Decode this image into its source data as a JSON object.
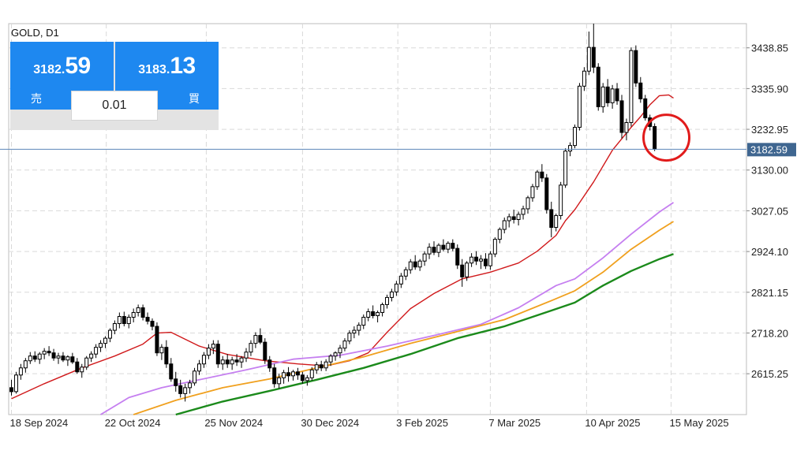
{
  "symbol_label": "GOLD, D1",
  "trade_panel": {
    "sell": {
      "price_small": "3182.",
      "price_big": "59",
      "label": "売"
    },
    "buy": {
      "price_small": "3183.",
      "price_big": "13",
      "label": "買"
    },
    "lot": "0.01",
    "color": "#1e88f0"
  },
  "chart_data": {
    "type": "candlestick",
    "title": "GOLD, D1",
    "ylim": [
      2512,
      3500
    ],
    "y_ticks": [
      "3438.85",
      "3335.90",
      "3232.95",
      "3130.00",
      "3027.05",
      "2924.10",
      "2821.15",
      "2718.20",
      "2615.25"
    ],
    "x_ticks": [
      "18 Sep 2024",
      "22 Oct 2024",
      "25 Nov 2024",
      "30 Dec 2024",
      "3 Feb 2025",
      "7 Mar 2025",
      "10 Apr 2025",
      "15 May 2025"
    ],
    "current_price": 3182.59,
    "current_price_label": "3182.59",
    "grid": true,
    "candles": [
      [
        2580,
        2600,
        2560,
        2570
      ],
      [
        2570,
        2620,
        2565,
        2612
      ],
      [
        2612,
        2640,
        2600,
        2630
      ],
      [
        2630,
        2655,
        2618,
        2648
      ],
      [
        2648,
        2670,
        2640,
        2660
      ],
      [
        2660,
        2672,
        2645,
        2652
      ],
      [
        2652,
        2670,
        2640,
        2665
      ],
      [
        2665,
        2680,
        2652,
        2672
      ],
      [
        2672,
        2685,
        2660,
        2668
      ],
      [
        2668,
        2678,
        2648,
        2655
      ],
      [
        2655,
        2668,
        2640,
        2660
      ],
      [
        2660,
        2670,
        2645,
        2650
      ],
      [
        2650,
        2662,
        2635,
        2658
      ],
      [
        2658,
        2668,
        2640,
        2645
      ],
      [
        2645,
        2655,
        2615,
        2620
      ],
      [
        2620,
        2640,
        2605,
        2632
      ],
      [
        2632,
        2660,
        2625,
        2655
      ],
      [
        2655,
        2672,
        2645,
        2665
      ],
      [
        2665,
        2690,
        2655,
        2682
      ],
      [
        2682,
        2700,
        2670,
        2692
      ],
      [
        2692,
        2710,
        2680,
        2705
      ],
      [
        2705,
        2730,
        2695,
        2725
      ],
      [
        2725,
        2750,
        2715,
        2742
      ],
      [
        2742,
        2770,
        2730,
        2760
      ],
      [
        2760,
        2772,
        2735,
        2742
      ],
      [
        2742,
        2765,
        2730,
        2758
      ],
      [
        2758,
        2780,
        2745,
        2770
      ],
      [
        2770,
        2790,
        2760,
        2782
      ],
      [
        2782,
        2790,
        2750,
        2758
      ],
      [
        2758,
        2770,
        2740,
        2748
      ],
      [
        2748,
        2755,
        2725,
        2735
      ],
      [
        2735,
        2745,
        2660,
        2668
      ],
      [
        2668,
        2690,
        2650,
        2682
      ],
      [
        2682,
        2700,
        2630,
        2640
      ],
      [
        2640,
        2655,
        2595,
        2602
      ],
      [
        2602,
        2620,
        2570,
        2585
      ],
      [
        2585,
        2600,
        2555,
        2565
      ],
      [
        2565,
        2590,
        2545,
        2580
      ],
      [
        2580,
        2600,
        2565,
        2592
      ],
      [
        2592,
        2630,
        2585,
        2622
      ],
      [
        2622,
        2650,
        2612,
        2640
      ],
      [
        2640,
        2670,
        2630,
        2662
      ],
      [
        2662,
        2690,
        2652,
        2680
      ],
      [
        2680,
        2700,
        2665,
        2690
      ],
      [
        2690,
        2700,
        2630,
        2640
      ],
      [
        2640,
        2660,
        2625,
        2650
      ],
      [
        2650,
        2665,
        2630,
        2640
      ],
      [
        2640,
        2658,
        2625,
        2650
      ],
      [
        2650,
        2665,
        2635,
        2645
      ],
      [
        2645,
        2660,
        2630,
        2655
      ],
      [
        2655,
        2680,
        2645,
        2670
      ],
      [
        2670,
        2700,
        2660,
        2692
      ],
      [
        2692,
        2720,
        2680,
        2712
      ],
      [
        2712,
        2730,
        2690,
        2695
      ],
      [
        2695,
        2705,
        2640,
        2650
      ],
      [
        2650,
        2660,
        2620,
        2630
      ],
      [
        2630,
        2640,
        2580,
        2590
      ],
      [
        2590,
        2615,
        2578,
        2605
      ],
      [
        2605,
        2625,
        2590,
        2618
      ],
      [
        2618,
        2632,
        2595,
        2610
      ],
      [
        2610,
        2625,
        2598,
        2620
      ],
      [
        2620,
        2630,
        2600,
        2612
      ],
      [
        2612,
        2620,
        2590,
        2598
      ],
      [
        2598,
        2612,
        2585,
        2605
      ],
      [
        2605,
        2632,
        2598,
        2625
      ],
      [
        2625,
        2645,
        2615,
        2638
      ],
      [
        2638,
        2648,
        2622,
        2630
      ],
      [
        2630,
        2652,
        2622,
        2645
      ],
      [
        2645,
        2665,
        2635,
        2660
      ],
      [
        2660,
        2672,
        2648,
        2668
      ],
      [
        2668,
        2688,
        2655,
        2680
      ],
      [
        2680,
        2705,
        2672,
        2698
      ],
      [
        2698,
        2725,
        2690,
        2718
      ],
      [
        2718,
        2735,
        2705,
        2725
      ],
      [
        2725,
        2745,
        2712,
        2738
      ],
      [
        2738,
        2765,
        2728,
        2758
      ],
      [
        2758,
        2780,
        2748,
        2772
      ],
      [
        2772,
        2788,
        2755,
        2762
      ],
      [
        2762,
        2775,
        2745,
        2770
      ],
      [
        2770,
        2795,
        2760,
        2790
      ],
      [
        2790,
        2815,
        2780,
        2808
      ],
      [
        2808,
        2830,
        2798,
        2822
      ],
      [
        2822,
        2850,
        2812,
        2842
      ],
      [
        2842,
        2870,
        2832,
        2862
      ],
      [
        2862,
        2885,
        2852,
        2878
      ],
      [
        2878,
        2905,
        2868,
        2898
      ],
      [
        2898,
        2915,
        2878,
        2885
      ],
      [
        2885,
        2905,
        2875,
        2900
      ],
      [
        2900,
        2925,
        2888,
        2918
      ],
      [
        2918,
        2945,
        2905,
        2935
      ],
      [
        2935,
        2950,
        2915,
        2922
      ],
      [
        2922,
        2945,
        2910,
        2940
      ],
      [
        2940,
        2955,
        2925,
        2930
      ],
      [
        2930,
        2950,
        2920,
        2945
      ],
      [
        2945,
        2955,
        2925,
        2932
      ],
      [
        2932,
        2942,
        2880,
        2890
      ],
      [
        2890,
        2905,
        2835,
        2860
      ],
      [
        2860,
        2900,
        2850,
        2895
      ],
      [
        2895,
        2920,
        2885,
        2910
      ],
      [
        2910,
        2925,
        2890,
        2900
      ],
      [
        2900,
        2915,
        2880,
        2905
      ],
      [
        2905,
        2920,
        2880,
        2888
      ],
      [
        2888,
        2925,
        2878,
        2918
      ],
      [
        2918,
        2960,
        2910,
        2955
      ],
      [
        2955,
        2985,
        2945,
        2980
      ],
      [
        2980,
        3010,
        2970,
        3002
      ],
      [
        3002,
        3020,
        2985,
        3012
      ],
      [
        3012,
        3030,
        2995,
        3005
      ],
      [
        3005,
        3025,
        2990,
        3018
      ],
      [
        3018,
        3040,
        3005,
        3032
      ],
      [
        3032,
        3065,
        3020,
        3060
      ],
      [
        3060,
        3095,
        3050,
        3088
      ],
      [
        3088,
        3130,
        3080,
        3125
      ],
      [
        3125,
        3145,
        3100,
        3110
      ],
      [
        3110,
        3120,
        3020,
        3030
      ],
      [
        3030,
        3050,
        2960,
        2985
      ],
      [
        2985,
        3020,
        2975,
        3015
      ],
      [
        3015,
        3100,
        3005,
        3092
      ],
      [
        3092,
        3185,
        3085,
        3178
      ],
      [
        3178,
        3200,
        3165,
        3192
      ],
      [
        3192,
        3245,
        3185,
        3238
      ],
      [
        3238,
        3350,
        3230,
        3342
      ],
      [
        3342,
        3390,
        3330,
        3380
      ],
      [
        3380,
        3480,
        3370,
        3440
      ],
      [
        3440,
        3500,
        3375,
        3390
      ],
      [
        3390,
        3400,
        3280,
        3290
      ],
      [
        3290,
        3350,
        3275,
        3340
      ],
      [
        3340,
        3360,
        3290,
        3300
      ],
      [
        3300,
        3345,
        3285,
        3335
      ],
      [
        3335,
        3350,
        3295,
        3305
      ],
      [
        3305,
        3320,
        3210,
        3225
      ],
      [
        3225,
        3260,
        3205,
        3250
      ],
      [
        3250,
        3440,
        3240,
        3432
      ],
      [
        3432,
        3445,
        3340,
        3350
      ],
      [
        3350,
        3365,
        3300,
        3310
      ],
      [
        3310,
        3320,
        3255,
        3262
      ],
      [
        3262,
        3270,
        3230,
        3240
      ],
      [
        3240,
        3248,
        3178,
        3183
      ]
    ],
    "series": [
      {
        "name": "",
        "color": "#d0191b",
        "width": 1.4,
        "points": [
          [
            0,
            2552
          ],
          [
            7,
            2590
          ],
          [
            15,
            2630
          ],
          [
            22,
            2660
          ],
          [
            28,
            2690
          ],
          [
            31,
            2718
          ],
          [
            34,
            2720
          ],
          [
            40,
            2685
          ],
          [
            46,
            2664
          ],
          [
            54,
            2648
          ],
          [
            61,
            2640
          ],
          [
            67,
            2635
          ],
          [
            72,
            2648
          ],
          [
            76,
            2668
          ],
          [
            80,
            2720
          ],
          [
            85,
            2780
          ],
          [
            90,
            2818
          ],
          [
            96,
            2855
          ],
          [
            102,
            2872
          ],
          [
            108,
            2895
          ],
          [
            112,
            2925
          ],
          [
            116,
            2965
          ],
          [
            118,
            3002
          ],
          [
            120,
            3030
          ],
          [
            124,
            3100
          ],
          [
            128,
            3180
          ],
          [
            132,
            3238
          ],
          [
            134,
            3265
          ],
          [
            136,
            3295
          ],
          [
            138,
            3318
          ],
          [
            140,
            3320
          ],
          [
            141,
            3312
          ]
        ]
      },
      {
        "name": "",
        "color": "#c57ff0",
        "width": 1.8,
        "points": [
          [
            19,
            2512
          ],
          [
            25,
            2555
          ],
          [
            32,
            2580
          ],
          [
            40,
            2600
          ],
          [
            50,
            2625
          ],
          [
            60,
            2652
          ],
          [
            70,
            2662
          ],
          [
            80,
            2685
          ],
          [
            90,
            2712
          ],
          [
            100,
            2740
          ],
          [
            108,
            2782
          ],
          [
            116,
            2838
          ],
          [
            120,
            2855
          ],
          [
            126,
            2908
          ],
          [
            132,
            2968
          ],
          [
            138,
            3024
          ],
          [
            141,
            3048
          ]
        ]
      },
      {
        "name": "",
        "color": "#f0a01e",
        "width": 1.8,
        "points": [
          [
            26,
            2512
          ],
          [
            35,
            2548
          ],
          [
            45,
            2580
          ],
          [
            55,
            2602
          ],
          [
            65,
            2630
          ],
          [
            75,
            2658
          ],
          [
            85,
            2692
          ],
          [
            95,
            2722
          ],
          [
            105,
            2752
          ],
          [
            115,
            2800
          ],
          [
            120,
            2825
          ],
          [
            126,
            2872
          ],
          [
            132,
            2930
          ],
          [
            138,
            2978
          ],
          [
            141,
            3000
          ]
        ]
      },
      {
        "name": "",
        "color": "#1b8a1b",
        "width": 2.4,
        "points": [
          [
            35,
            2512
          ],
          [
            45,
            2545
          ],
          [
            55,
            2572
          ],
          [
            65,
            2600
          ],
          [
            75,
            2630
          ],
          [
            85,
            2665
          ],
          [
            95,
            2705
          ],
          [
            105,
            2735
          ],
          [
            115,
            2775
          ],
          [
            120,
            2795
          ],
          [
            126,
            2838
          ],
          [
            132,
            2875
          ],
          [
            138,
            2905
          ],
          [
            141,
            2918
          ]
        ]
      }
    ],
    "annotation": {
      "type": "circle",
      "color": "#e11b1b"
    }
  }
}
